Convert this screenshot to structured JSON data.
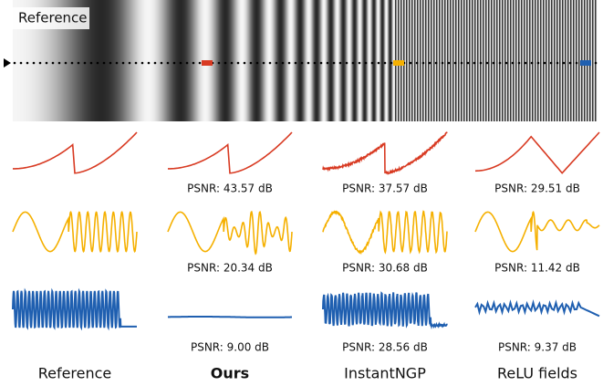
{
  "band_label": "Reference",
  "rows": [
    {
      "psnr": [
        "PSNR: 43.57 dB",
        "PSNR: 37.57 dB",
        "PSNR: 29.51 dB"
      ]
    },
    {
      "psnr": [
        "PSNR: 20.34 dB",
        "PSNR: 30.68 dB",
        "PSNR: 11.42 dB"
      ]
    },
    {
      "psnr": [
        "PSNR: 9.00 dB",
        "PSNR: 28.56 dB",
        "PSNR: 9.37 dB"
      ]
    }
  ],
  "columns": [
    "Reference",
    "Ours",
    "InstantNGP",
    "ReLU fields"
  ]
}
